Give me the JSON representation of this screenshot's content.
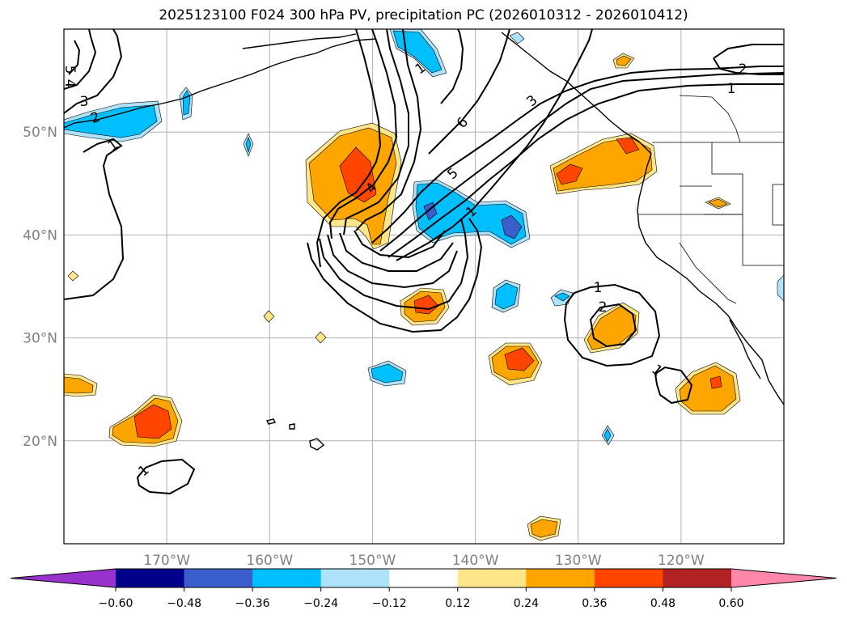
{
  "title": "2025123100 F024 300 hPa PV, precipitation PC (2026010312 - 2026010412)",
  "colors": {
    "pos": [
      "#ffe68a",
      "#ffa500",
      "#ff4500",
      "#b22222",
      "#ff88aa"
    ],
    "neg": [
      "#aee2fa",
      "#00bfff",
      "#3a5fcd",
      "#00008b",
      "#9932cc"
    ],
    "frame": "#000000",
    "grid": "#b0b0b0",
    "tick_label": "#808080"
  },
  "map": {
    "lon_range": [
      -180,
      -110
    ],
    "lat_range": [
      10,
      60
    ],
    "lon_ticks": [
      {
        "value": -170,
        "label": "170°W"
      },
      {
        "value": -160,
        "label": "160°W"
      },
      {
        "value": -150,
        "label": "150°W"
      },
      {
        "value": -140,
        "label": "140°W"
      },
      {
        "value": -130,
        "label": "130°W"
      },
      {
        "value": -120,
        "label": "120°W"
      }
    ],
    "lat_ticks": [
      {
        "value": 20,
        "label": "20°N"
      },
      {
        "value": 30,
        "label": "30°N"
      },
      {
        "value": 40,
        "label": "40°N"
      },
      {
        "value": 50,
        "label": "50°N"
      }
    ]
  },
  "colorbar": {
    "levels": [
      "−0.60",
      "−0.48",
      "−0.36",
      "−0.24",
      "−0.12",
      "0.12",
      "0.24",
      "0.36",
      "0.48",
      "0.60"
    ],
    "colors": [
      "#9932cc",
      "#00008b",
      "#3a5fcd",
      "#00bfff",
      "#aee2fa",
      "#ffffff",
      "#ffe68a",
      "#ffa500",
      "#ff4500",
      "#b22222",
      "#ff88aa"
    ]
  },
  "pv_contour_labels": [
    "1",
    "1",
    "1",
    "1",
    "1",
    "1",
    "1",
    "2",
    "2",
    "2",
    "3",
    "3",
    "4",
    "5",
    "5",
    "6"
  ]
}
